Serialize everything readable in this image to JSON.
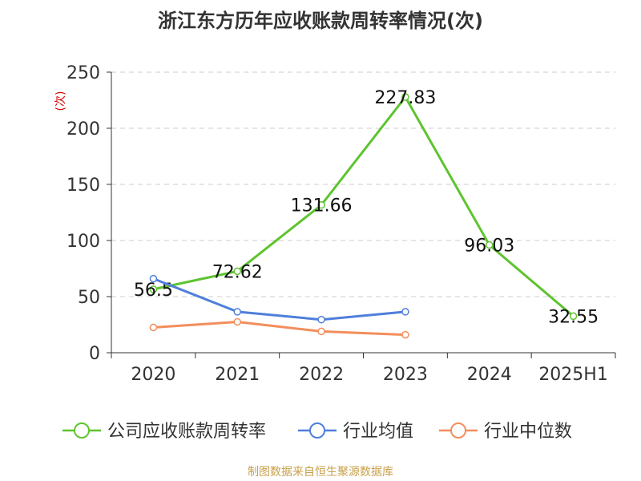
{
  "title": "浙江东方历年应收账款周转率情况(次)",
  "source": "制图数据来自恒生聚源数据库",
  "colors": {
    "company": "#5ec42f",
    "industry_avg": "#4f7fdb",
    "industry_median": "#f38e5c",
    "grid": "#cccccc",
    "axis_text": "#333333",
    "unit_text": "#d00000"
  },
  "chart_data": {
    "type": "line",
    "title": "浙江东方历年应收账款周转率情况(次)",
    "ylabel": "(次)",
    "xlabel": "",
    "ylim": [
      0,
      250
    ],
    "yticks": [
      0,
      50,
      100,
      150,
      200,
      250
    ],
    "grid": true,
    "legend_position": "bottom",
    "categories": [
      "2020",
      "2021",
      "2022",
      "2023",
      "2024",
      "2025H1"
    ],
    "series": [
      {
        "name": "公司应收账款周转率",
        "values": [
          56.5,
          72.62,
          131.66,
          227.83,
          96.03,
          32.55
        ],
        "labels": [
          "56.5",
          "72.62",
          "131.66",
          "227.83",
          "96.03",
          "32.55"
        ],
        "color": "#5ec42f"
      },
      {
        "name": "行业均值",
        "values": [
          66,
          36.5,
          29.5,
          36.5,
          null,
          null
        ],
        "color": "#4f7fdb"
      },
      {
        "name": "行业中位数",
        "values": [
          22.5,
          27.5,
          19,
          16,
          null,
          null
        ],
        "color": "#f38e5c"
      }
    ]
  }
}
